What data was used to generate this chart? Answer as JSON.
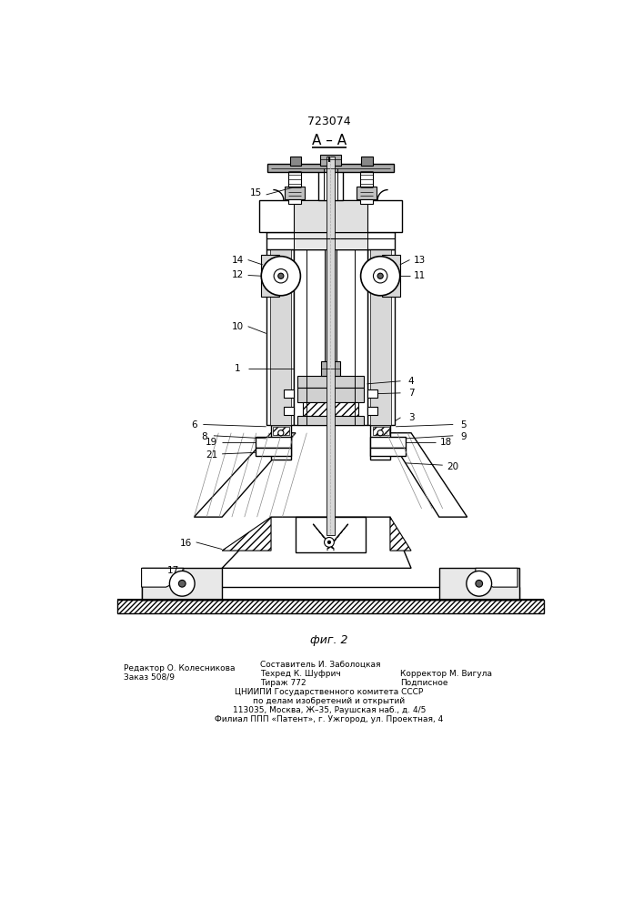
{
  "patent_number": "723074",
  "section_label": "А – А",
  "fig_label": "фиг. 2",
  "bg_color": "#ffffff",
  "footer_left": [
    "Редактор О. Колесникова",
    "Заказ 508/9"
  ],
  "footer_mid1": [
    "Составитель И. Заболоцкая",
    "Техред К. Шуфрич",
    "Тираж 772"
  ],
  "footer_mid2": [
    "Корректор М. Вигула",
    "Подписное"
  ],
  "footer_center": [
    "ЦНИИПИ Государственного комитета СССР",
    "по делам изобретений и открытий",
    "113035, Москва, Ж–35, Раушская наб., д. 4/5",
    "Филиал ППП «Патент», г. Ужгород, ул. Проектная, 4"
  ]
}
